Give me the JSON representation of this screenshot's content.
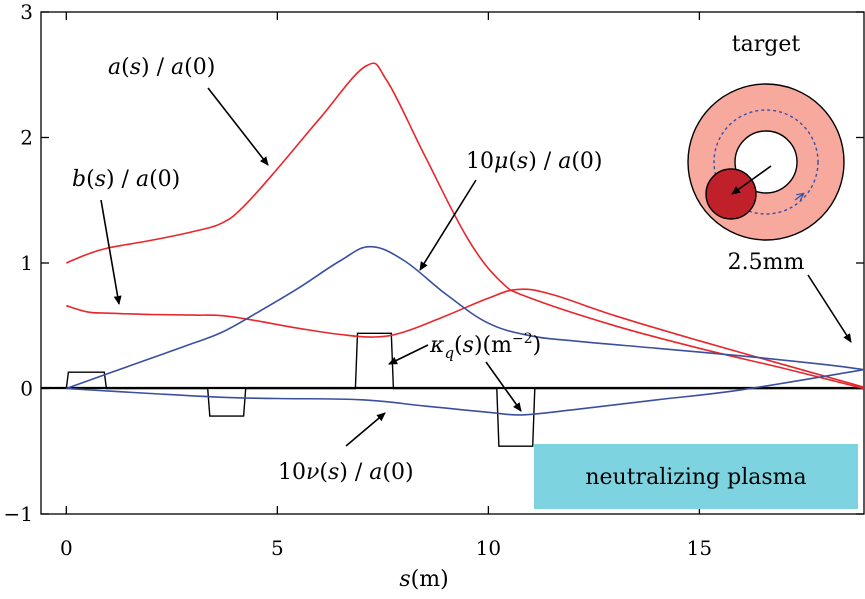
{
  "chart_data": {
    "type": "line",
    "xlabel": "s(m)",
    "xlim": [
      -0.6,
      18.9
    ],
    "ylim": [
      -1,
      3
    ],
    "x_ticks": [
      0,
      5,
      10,
      15
    ],
    "y_ticks": [
      -1,
      0,
      1,
      2,
      3
    ],
    "series": [
      {
        "name": "a(s) / a(0)",
        "color": "#e8262b",
        "x": [
          0,
          0.5,
          1,
          2,
          3,
          3.7,
          4.2,
          5,
          6,
          7.1,
          7.6,
          8.5,
          9.5,
          10.3,
          11,
          13,
          15,
          17,
          18.9
        ],
        "y": [
          1.0,
          1.07,
          1.12,
          1.18,
          1.25,
          1.32,
          1.45,
          1.75,
          2.15,
          2.57,
          2.45,
          1.85,
          1.2,
          0.85,
          0.72,
          0.5,
          0.32,
          0.16,
          0.0
        ]
      },
      {
        "name": "b(s) / a(0)",
        "color": "#e8262b",
        "x": [
          0,
          0.5,
          1,
          2,
          3,
          3.7,
          4.5,
          5.5,
          6.5,
          7.3,
          8,
          9,
          10,
          10.7,
          11.5,
          13,
          15,
          17,
          18.9
        ],
        "y": [
          0.66,
          0.61,
          0.6,
          0.59,
          0.585,
          0.58,
          0.54,
          0.48,
          0.43,
          0.41,
          0.45,
          0.58,
          0.72,
          0.79,
          0.75,
          0.58,
          0.38,
          0.19,
          0.01
        ]
      },
      {
        "name": "10μ(s) / a(0)",
        "color": "#3a4fa0",
        "x": [
          0,
          1,
          2,
          3,
          3.7,
          4.5,
          5.5,
          6.5,
          7.2,
          8,
          9,
          10,
          11,
          12,
          14,
          16,
          18,
          18.9
        ],
        "y": [
          0.0,
          0.12,
          0.24,
          0.36,
          0.45,
          0.6,
          0.8,
          1.02,
          1.13,
          1.02,
          0.75,
          0.52,
          0.42,
          0.38,
          0.32,
          0.26,
          0.19,
          0.15
        ]
      },
      {
        "name": "10ν(s) / a(0)",
        "color": "#3a4fa0",
        "x": [
          0,
          2,
          3.7,
          5,
          7,
          8.5,
          10,
          10.8,
          12,
          14,
          16,
          18.9
        ],
        "y": [
          0.0,
          -0.04,
          -0.07,
          -0.08,
          -0.09,
          -0.14,
          -0.19,
          -0.21,
          -0.17,
          -0.09,
          -0.01,
          0.15
        ]
      }
    ],
    "kappa_q": {
      "name": "κq(s)(m−2)",
      "color": "#000000",
      "x": [
        0,
        0.05,
        0.9,
        0.95,
        3.35,
        3.4,
        4.2,
        4.25,
        6.85,
        6.9,
        7.7,
        7.75,
        10.2,
        10.25,
        11.05,
        11.1,
        18.9
      ],
      "y": [
        0,
        0.13,
        0.13,
        0,
        0,
        -0.22,
        -0.22,
        0,
        0,
        0.44,
        0.44,
        0,
        0,
        -0.46,
        -0.46,
        0,
        0
      ]
    },
    "annotations": {
      "a_label": "a(s) / a(0)",
      "b_label": "b(s) / a(0)",
      "mu_label": "10μ(s) / a(0)",
      "nu_label": "10ν(s) / a(0)",
      "kappa_label": "κq(s)(m−2)",
      "target_label": "target",
      "spot_label": "2.5mm",
      "plasma_label": "neutralizing plasma"
    },
    "colors": {
      "plasma_box": "#7dd3e0",
      "target_ring": "#f7a99e",
      "target_spot": "#c0202a",
      "orbit": "#3a4fa0"
    }
  }
}
